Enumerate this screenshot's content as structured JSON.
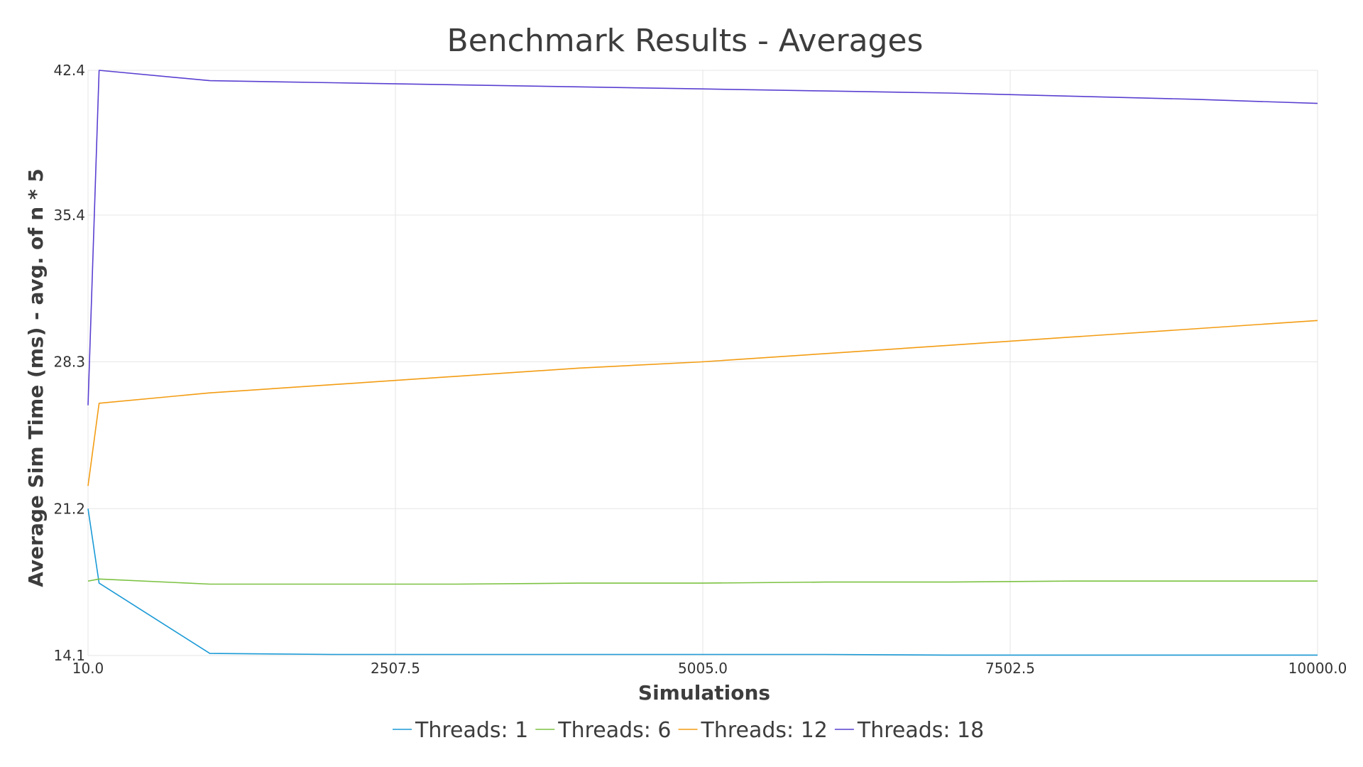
{
  "chart_data": {
    "type": "line",
    "title": "Benchmark Results - Averages",
    "xlabel": "Simulations",
    "ylabel": "Average Sim Time (ms) - avg. of n * 5",
    "xlim": [
      10.0,
      10000.0
    ],
    "ylim": [
      14.1,
      42.4
    ],
    "x_ticks": [
      "10.0",
      "2507.5",
      "5005.0",
      "7502.5",
      "10000.0"
    ],
    "y_ticks": [
      "42.4",
      "35.4",
      "28.3",
      "21.2",
      "14.1"
    ],
    "grid": true,
    "legend_position": "bottom",
    "series": [
      {
        "name": "Threads: 1",
        "color": "#1a9ad6",
        "x": [
          10,
          100,
          1000,
          2000,
          3000,
          4000,
          5000,
          6000,
          7000,
          8000,
          9000,
          10000
        ],
        "y": [
          21.2,
          17.6,
          14.2,
          14.15,
          14.15,
          14.15,
          14.15,
          14.15,
          14.12,
          14.12,
          14.12,
          14.12
        ]
      },
      {
        "name": "Threads: 6",
        "color": "#7cc242",
        "x": [
          10,
          100,
          1000,
          2000,
          3000,
          4000,
          5000,
          6000,
          7000,
          8000,
          9000,
          10000
        ],
        "y": [
          17.7,
          17.8,
          17.55,
          17.55,
          17.55,
          17.6,
          17.6,
          17.65,
          17.65,
          17.7,
          17.7,
          17.7
        ]
      },
      {
        "name": "Threads: 12",
        "color": "#f39c12",
        "x": [
          10,
          100,
          1000,
          2000,
          3000,
          4000,
          5000,
          6000,
          7000,
          8000,
          9000,
          10000
        ],
        "y": [
          22.3,
          26.3,
          26.8,
          27.2,
          27.6,
          28.0,
          28.3,
          28.7,
          29.1,
          29.5,
          29.9,
          30.3
        ]
      },
      {
        "name": "Threads: 18",
        "color": "#5a3fd1",
        "x": [
          10,
          100,
          1000,
          2000,
          3000,
          4000,
          5000,
          6000,
          7000,
          8000,
          9000,
          10000
        ],
        "y": [
          26.2,
          42.4,
          41.9,
          41.8,
          41.7,
          41.6,
          41.5,
          41.4,
          41.3,
          41.15,
          41.0,
          40.8
        ]
      }
    ]
  }
}
